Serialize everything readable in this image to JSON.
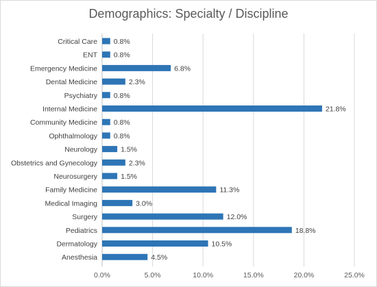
{
  "chart_data": {
    "type": "bar",
    "orientation": "horizontal",
    "title": "Demographics: Specialty / Discipline",
    "xlabel": "",
    "ylabel": "",
    "categories": [
      "Critical Care",
      "ENT",
      "Emergency Medicine",
      "Dental Medicine",
      "Psychiatry",
      "Internal Medicine",
      "Community Medicine",
      "Ophthalmology",
      "Neurology",
      "Obstetrics and Gynecology",
      "Neurosurgery",
      "Family Medicine",
      "Medical Imaging",
      "Surgery",
      "Pediatrics",
      "Dermatology",
      "Anesthesia"
    ],
    "values": [
      0.8,
      0.8,
      6.8,
      2.3,
      0.8,
      21.8,
      0.8,
      0.8,
      1.5,
      2.3,
      1.5,
      11.3,
      3.0,
      12.0,
      18.8,
      10.5,
      4.5
    ],
    "value_labels": [
      "0.8%",
      "0.8%",
      "6.8%",
      "2.3%",
      "0.8%",
      "21.8%",
      "0.8%",
      "0.8%",
      "1.5%",
      "2.3%",
      "1.5%",
      "11.3%",
      "3.0%",
      "12.0%",
      "18.8%",
      "10.5%",
      "4.5%"
    ],
    "x_ticks": [
      "0.0%",
      "5.0%",
      "10.0%",
      "15.0%",
      "20.0%",
      "25.0%"
    ],
    "xlim": [
      0,
      25
    ],
    "grid": true,
    "legend": "none",
    "bar_color": "#2e75b6",
    "grid_color": "#d9d9d9"
  }
}
